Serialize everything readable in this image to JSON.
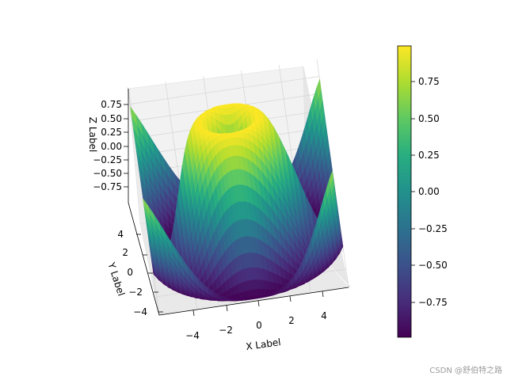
{
  "chart_data": {
    "type": "surface3d",
    "function": "z = sin(sqrt(x^2 + y^2))",
    "x_range": [
      -5,
      5
    ],
    "y_range": [
      -5,
      5
    ],
    "z_range": [
      -1,
      1
    ],
    "xlabel": "X Label",
    "ylabel": "Y Label",
    "zlabel": "Z Label",
    "x_ticks": [
      "−4",
      "−2",
      "0",
      "2",
      "4"
    ],
    "y_ticks": [
      "4",
      "2",
      "0",
      "−2",
      "−4"
    ],
    "z_ticks": [
      "0.75",
      "0.50",
      "0.25",
      "0.00",
      "−0.25",
      "−0.50",
      "−0.75"
    ],
    "colormap": "viridis",
    "colorbar": {
      "ticks": [
        "0.75",
        "0.50",
        "0.25",
        "0.00",
        "−0.25",
        "−0.50",
        "−0.75"
      ],
      "range": [
        -1,
        1
      ]
    },
    "grid": true
  },
  "watermark": "CSDN @舒伯特之路"
}
